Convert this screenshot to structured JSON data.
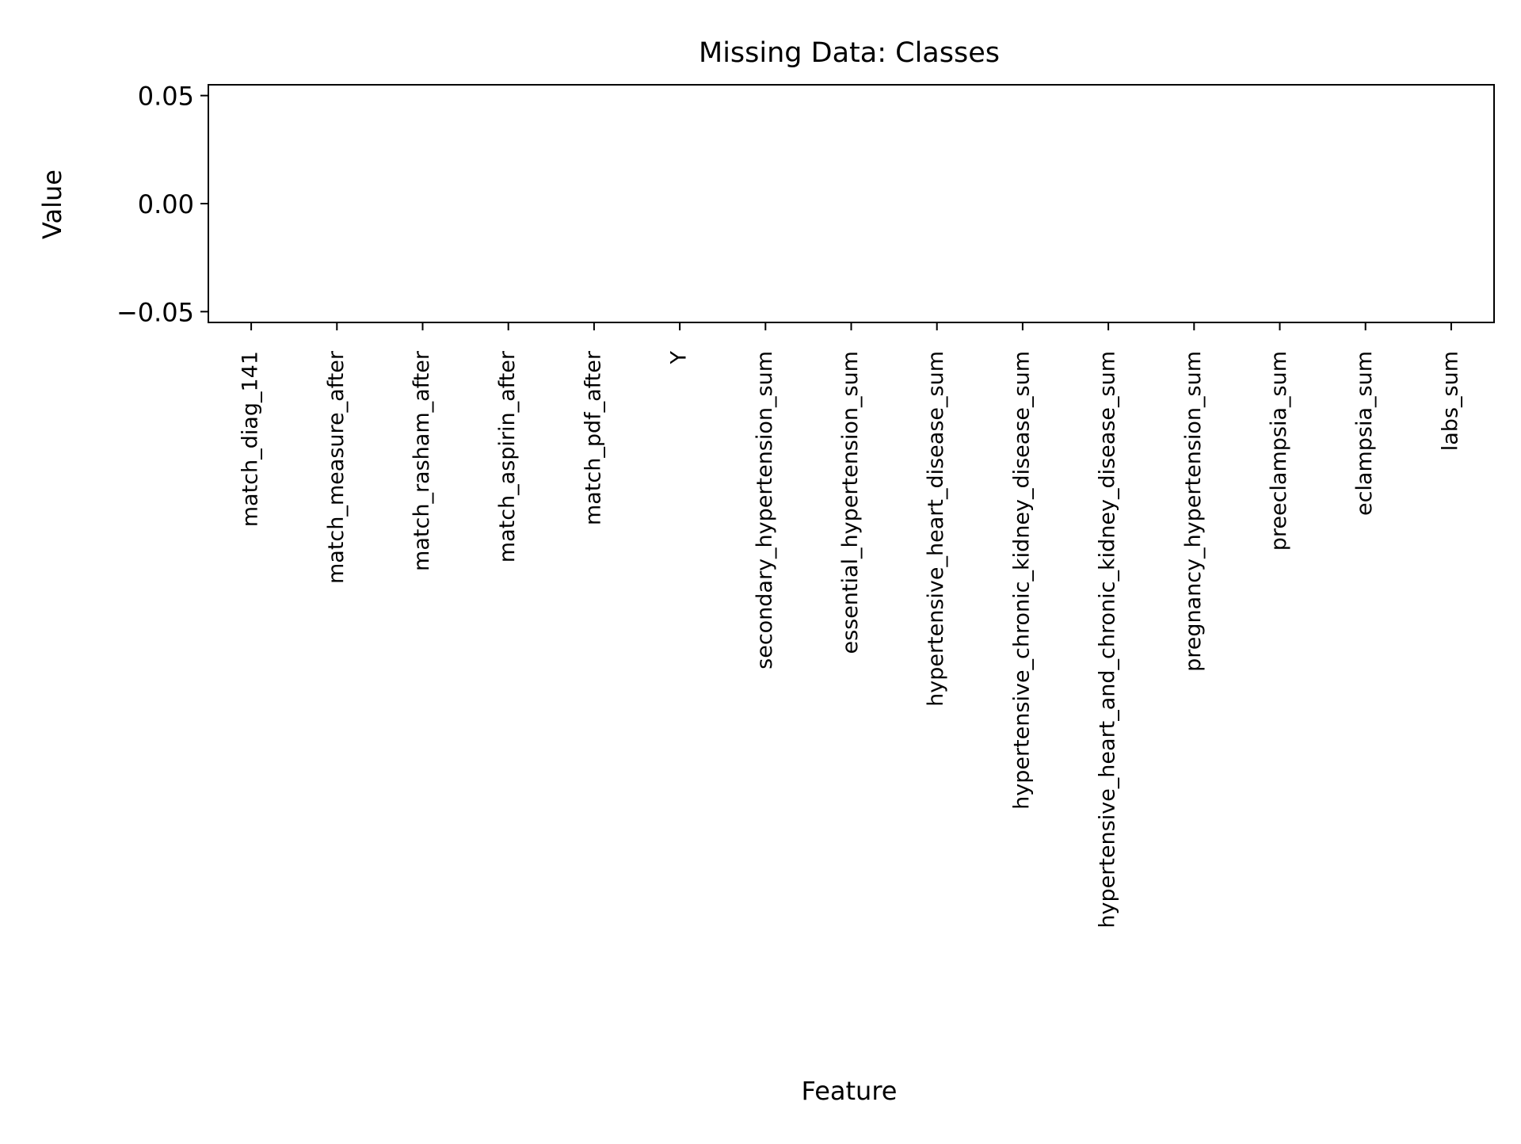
{
  "chart_data": {
    "type": "bar",
    "title": "Missing Data: Classes",
    "xlabel": "Feature",
    "ylabel": "Value",
    "categories": [
      "match_diag_141",
      "match_measure_after",
      "match_rasham_after",
      "match_aspirin_after",
      "match_pdf_after",
      "Y",
      "secondary_hypertension_sum",
      "essential_hypertension_sum",
      "hypertensive_heart_disease_sum",
      "hypertensive_chronic_kidney_disease_sum",
      "hypertensive_heart_and_chronic_kidney_disease_sum",
      "pregnancy_hypertension_sum",
      "preeclampsia_sum",
      "eclampsia_sum",
      "labs_sum"
    ],
    "values": [
      0,
      0,
      0,
      0,
      0,
      0,
      0,
      0,
      0,
      0,
      0,
      0,
      0,
      0,
      0
    ],
    "ylim": [
      -0.055,
      0.055
    ],
    "yticks": [
      -0.05,
      0.0,
      0.05
    ],
    "ytick_labels": [
      "−0.05",
      "0.00",
      "0.05"
    ],
    "grid": false,
    "legend": "none",
    "colors": {
      "axis": "#000000",
      "bar": "#1f77b4",
      "background": "#ffffff"
    }
  }
}
